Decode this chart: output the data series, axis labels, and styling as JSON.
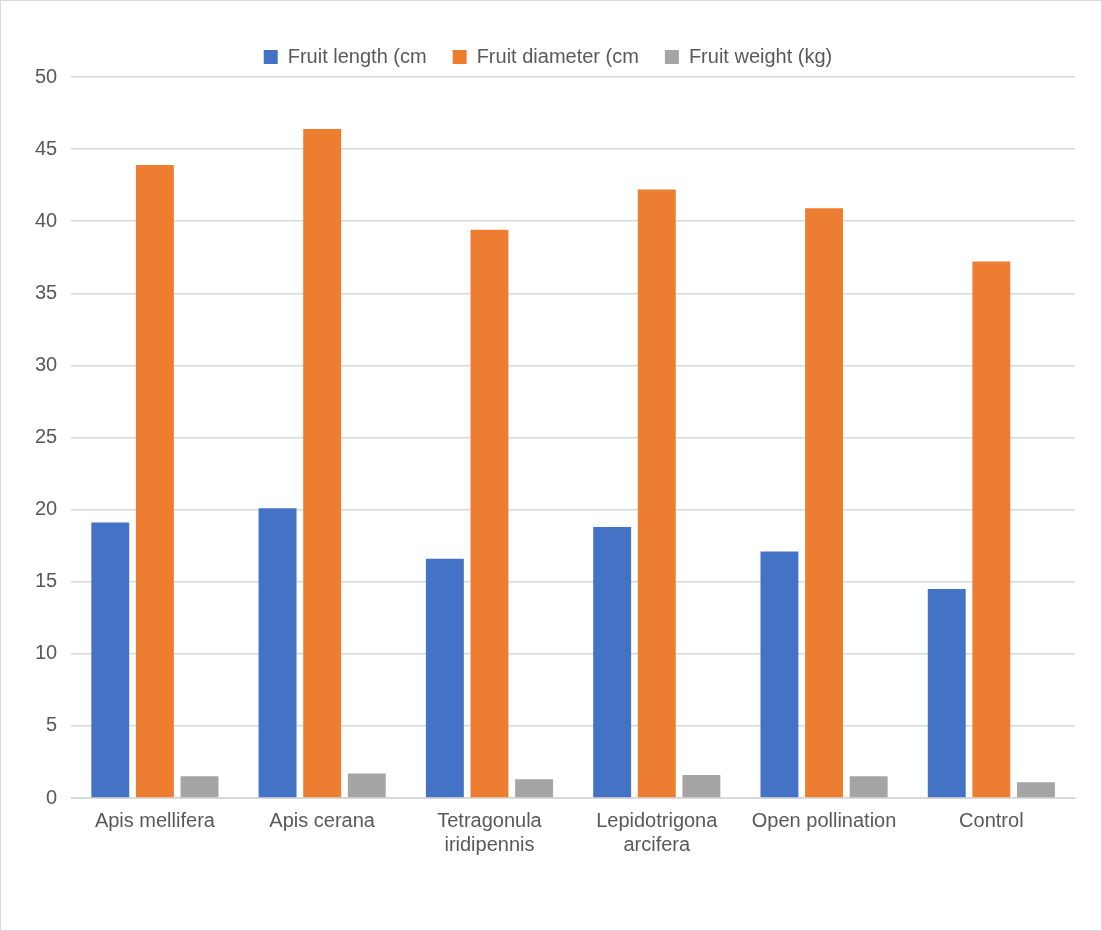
{
  "chart_data": {
    "type": "bar",
    "categories": [
      "Apis mellifera",
      "Apis cerana",
      "Tetragonula iridipennis",
      "Lepidotrigona arcifera",
      "Open pollination",
      "Control"
    ],
    "series": [
      {
        "name": "Fruit length (cm",
        "color": "#4472c4",
        "values": [
          19.1,
          20.1,
          16.6,
          18.8,
          17.1,
          14.5
        ]
      },
      {
        "name": "Fruit diameter (cm",
        "color": "#ed7d31",
        "values": [
          43.9,
          46.4,
          39.4,
          42.2,
          40.9,
          37.2
        ]
      },
      {
        "name": "Fruit weight (kg)",
        "color": "#a5a5a5",
        "values": [
          1.5,
          1.7,
          1.3,
          1.6,
          1.5,
          1.1
        ]
      }
    ],
    "ylim": [
      0,
      50
    ],
    "yticks": [
      0,
      5,
      10,
      15,
      20,
      25,
      30,
      35,
      40,
      45,
      50
    ],
    "grid": "y",
    "legend": "top"
  }
}
